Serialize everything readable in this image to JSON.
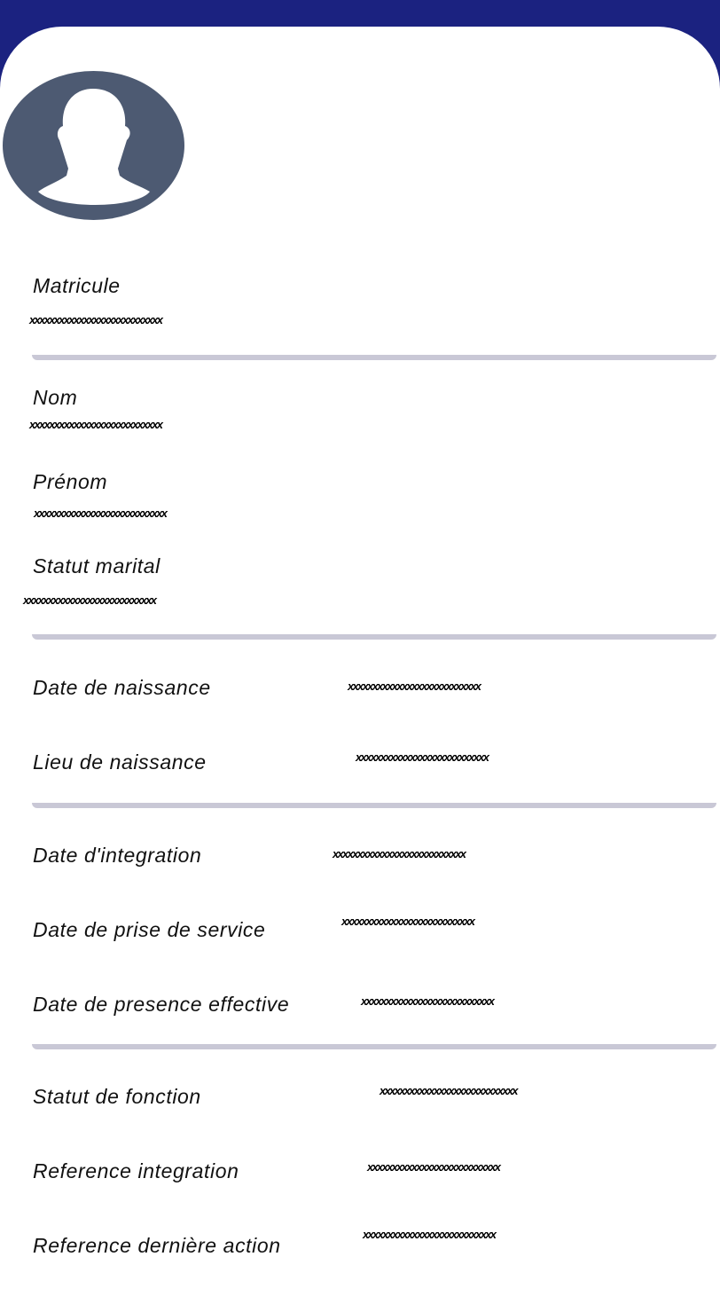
{
  "colors": {
    "header": "#1b2280",
    "avatar": "#4d5a72",
    "divider": "#c9c8d6"
  },
  "avatar": {
    "icon": "person-silhouette-icon"
  },
  "fields": [
    {
      "label": "Matricule",
      "value": "xxxxxxxxxxxxxxxxxxxxxxxxxxx"
    },
    {
      "label": "Nom",
      "value": "xxxxxxxxxxxxxxxxxxxxxxxxxxx"
    },
    {
      "label": "Prénom",
      "value": "xxxxxxxxxxxxxxxxxxxxxxxxxxx"
    },
    {
      "label": "Statut marital",
      "value": "xxxxxxxxxxxxxxxxxxxxxxxxxxx"
    },
    {
      "label": "Date de naissance",
      "value": "xxxxxxxxxxxxxxxxxxxxxxxxxxx"
    },
    {
      "label": "Lieu de naissance",
      "value": "xxxxxxxxxxxxxxxxxxxxxxxxxxx"
    },
    {
      "label": "Date d'integration",
      "value": "xxxxxxxxxxxxxxxxxxxxxxxxxxx"
    },
    {
      "label": "Date de prise de service",
      "value": "xxxxxxxxxxxxxxxxxxxxxxxxxxx"
    },
    {
      "label": "Date de presence effective",
      "value": "xxxxxxxxxxxxxxxxxxxxxxxxxxx"
    },
    {
      "label": "Statut de fonction",
      "value": "xxxxxxxxxxxxxxxxxxxxxxxxxxxx"
    },
    {
      "label": "Reference integration",
      "value": "xxxxxxxxxxxxxxxxxxxxxxxxxxx"
    },
    {
      "label": "Reference dernière action",
      "value": "xxxxxxxxxxxxxxxxxxxxxxxxxxx"
    }
  ]
}
